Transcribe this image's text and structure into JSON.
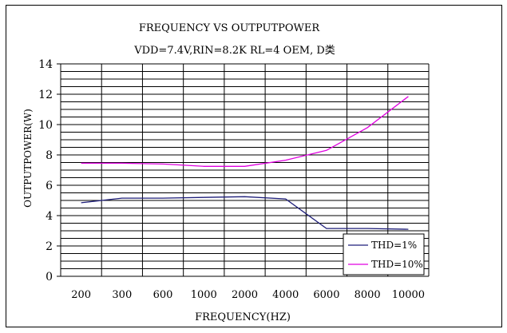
{
  "chart_data": {
    "type": "line",
    "title": "FREQUENCY VS OUTPUTPOWER",
    "subtitle": "VDD=7.4V,RIN=8.2K RL=4 OEM, D类",
    "xlabel": "FREQUENCY(HZ)",
    "ylabel": "OUTPUTPOWER(W)",
    "categories": [
      "200",
      "300",
      "600",
      "1000",
      "2000",
      "4000",
      "6000",
      "8000",
      "10000"
    ],
    "ylim": [
      0,
      14
    ],
    "yticks": [
      "0",
      "2",
      "4",
      "6",
      "8",
      "10",
      "12",
      "14"
    ],
    "grid": true,
    "legend_position": "bottom-right",
    "series": [
      {
        "name": "THD=1%",
        "color": "#1f1f7a",
        "values": [
          4.85,
          5.15,
          5.15,
          5.2,
          5.25,
          5.1,
          3.15,
          3.15,
          3.1
        ]
      },
      {
        "name": "THD=10%",
        "color": "#e000e0",
        "values": [
          7.45,
          7.45,
          7.4,
          7.25,
          7.25,
          7.65,
          8.3,
          9.8,
          11.85
        ]
      }
    ]
  }
}
